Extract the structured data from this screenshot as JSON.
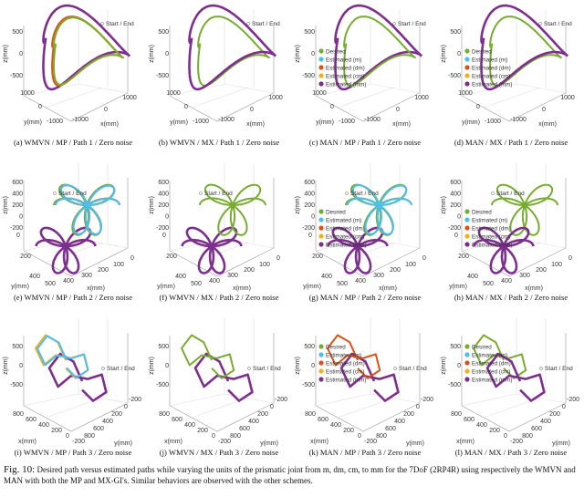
{
  "colors": {
    "Desired": "#77ac30",
    "Estimated (m)": "#4dbeee",
    "Estimated (dm)": "#d95319",
    "Estimated (cm)": "#edb120",
    "Estimated (mm)": "#7e2f8e"
  },
  "start_end_label": "Start / End",
  "legend": [
    "Desired",
    "Estimated (m)",
    "Estimated (dm)",
    "Estimated (cm)",
    "Estimated (mm)"
  ],
  "axes": {
    "path1": {
      "xlabel": "x(mm)",
      "ylabel": "y(mm)",
      "zlabel": "z(mm)",
      "zticks": [
        "500",
        "0",
        "-500"
      ],
      "yticks": [
        "1000",
        "0",
        "-1000"
      ],
      "xticks": [
        "-1000",
        "0",
        "1000"
      ]
    },
    "path2": {
      "xlabel": "x(mm)",
      "ylabel": "y(mm)",
      "zlabel": "z(mm)",
      "zticks": [
        "600",
        "400",
        "200",
        "0",
        "-200"
      ],
      "yticks": [
        "0",
        "200",
        "400"
      ],
      "xticks": [
        "500",
        "400",
        "300",
        "200",
        "100",
        "0"
      ]
    },
    "path3": {
      "xlabel": "x(mm)",
      "ylabel": "y(mm)",
      "zlabel": "z(mm)",
      "zticks": [
        "500",
        "0",
        "-500"
      ],
      "xticks": [
        "800",
        "600",
        "400",
        "200",
        "0",
        "-200"
      ],
      "yticks": [
        "-200",
        "0",
        "200",
        "400",
        "600",
        "800"
      ]
    }
  },
  "panels": [
    {
      "caption": "(a) WMVN / MP / Path 1 / Zero noise",
      "path": "path1",
      "series": [
        "Estimated (mm)",
        "Estimated (dm)",
        "Estimated (cm)",
        "Desired"
      ],
      "legend": false
    },
    {
      "caption": "(b) WMVN / MX / Path 1 / Zero noise",
      "path": "path1",
      "series": [
        "Desired",
        "Estimated (mm)"
      ],
      "legend": false
    },
    {
      "caption": "(c) MAN / MP / Path 1 / Zero noise",
      "path": "path1",
      "series": [
        "Estimated (mm)",
        "Desired"
      ],
      "legend": true
    },
    {
      "caption": "(d) MAN / MX / Path 1 / Zero noise",
      "path": "path1",
      "series": [
        "Desired",
        "Estimated (mm)"
      ],
      "legend": true
    },
    {
      "caption": "(e) WMVN / MP / Path 2 / Zero noise",
      "path": "path2",
      "series": [
        "Estimated (mm)",
        "Desired",
        "Estimated (dm)",
        "Estimated (m)"
      ],
      "legend": false
    },
    {
      "caption": "(f) WMVN / MX / Path 2 / Zero noise",
      "path": "path2",
      "series": [
        "Estimated (mm)",
        "Desired"
      ],
      "legend": false
    },
    {
      "caption": "(g) MAN / MP / Path 2 / Zero noise",
      "path": "path2",
      "series": [
        "Estimated (mm)",
        "Desired",
        "Estimated (m)"
      ],
      "legend": true
    },
    {
      "caption": "(h) MAN / MX / Path 2 / Zero noise",
      "path": "path2",
      "series": [
        "Desired",
        "Estimated (mm)"
      ],
      "legend": true
    },
    {
      "caption": "(i) WMVN / MP / Path 3 / Zero noise",
      "path": "path3",
      "series": [
        "Estimated (mm)",
        "Estimated (cm)",
        "Estimated (m)"
      ],
      "legend": false
    },
    {
      "caption": "(j) WMVN / MX / Path 3 / Zero noise",
      "path": "path3",
      "series": [
        "Estimated (mm)",
        "Desired"
      ],
      "legend": false
    },
    {
      "caption": "(k) MAN / MP / Path 3 / Zero noise",
      "path": "path3",
      "series": [
        "Estimated (mm)",
        "Estimated (dm)"
      ],
      "legend": true
    },
    {
      "caption": "(l) MAN / MX / Path 3 / Zero noise",
      "path": "path3",
      "series": [
        "Desired",
        "Estimated (mm)"
      ],
      "legend": true
    }
  ],
  "figure_caption": {
    "label": "Fig. 10:",
    "text": "Desired path versus estimated paths while varying the units of the prismatic joint from m, dm, cm, to mm for the 7DoF (2RP4R) using respectively the WMVN and MAN with both the MP and MX-GI's. Similar behaviors are observed with the other schemes."
  }
}
